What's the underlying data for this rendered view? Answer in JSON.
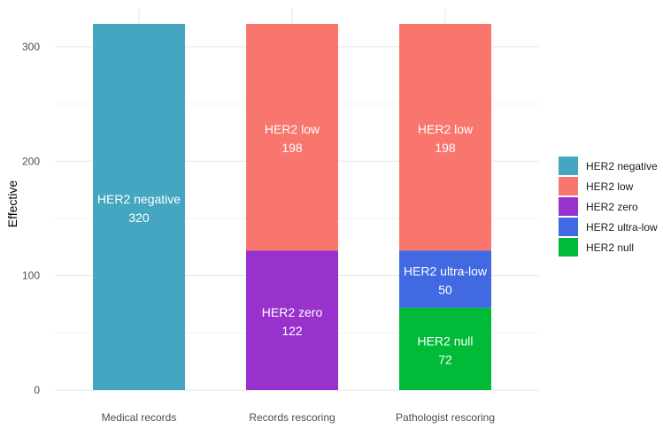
{
  "chart_data": {
    "type": "bar",
    "stacked": true,
    "title": "",
    "xlabel": "",
    "ylabel": "Effective",
    "ylim": [
      0,
      320
    ],
    "yticks": [
      0,
      100,
      200,
      300
    ],
    "grid": true,
    "legend_position": "right",
    "categories": [
      "Medical records",
      "Records rescoring",
      "Pathologist rescoring"
    ],
    "series": [
      {
        "name": "HER2 null",
        "color": "#00BA38",
        "values": [
          0,
          0,
          72
        ]
      },
      {
        "name": "HER2 ultra-low",
        "color": "#4169E1",
        "values": [
          0,
          0,
          50
        ]
      },
      {
        "name": "HER2 zero",
        "color": "#9932CC",
        "values": [
          0,
          122,
          0
        ]
      },
      {
        "name": "HER2 low",
        "color": "#F8766D",
        "values": [
          0,
          198,
          198
        ]
      },
      {
        "name": "HER2 negative",
        "color": "#44A6C0",
        "values": [
          320,
          0,
          0
        ]
      }
    ],
    "legend_order": [
      "HER2 negative",
      "HER2 low",
      "HER2 zero",
      "HER2 ultra-low",
      "HER2 null"
    ]
  }
}
